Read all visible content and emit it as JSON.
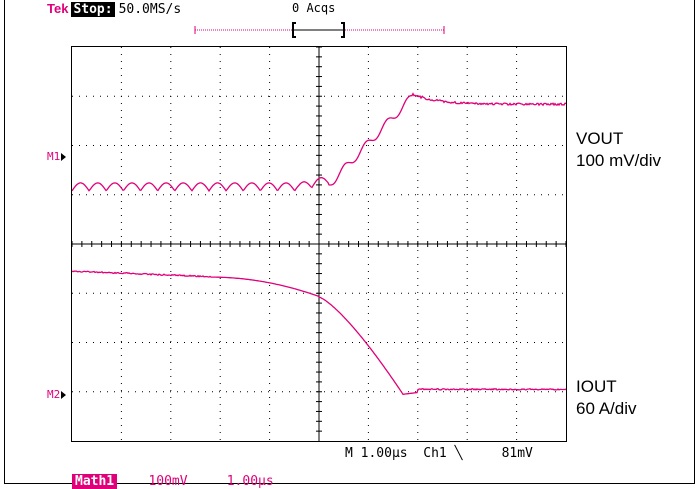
{
  "topbar": {
    "brand": "Tek",
    "state": "Stop:",
    "sample_rate": "50.0MS/s",
    "acquisitions": "0 Acqs"
  },
  "markers": {
    "m1": "M1",
    "m2": "M2"
  },
  "channels": [
    {
      "name": "VOUT",
      "scale": "100 mV/div"
    },
    {
      "name": "IOUT",
      "scale": "60 A/div"
    }
  ],
  "readout": {
    "timebase": "M 1.00µs",
    "trigger_source": "Ch1",
    "trigger_slope_icon": "falling-edge-icon",
    "trigger_level": "81mV"
  },
  "math_bar": {
    "label": "Math1",
    "volts": "100mV",
    "time": "1.00µs"
  },
  "colors": {
    "trace": "#e0007a",
    "grid": "#000000",
    "background": "#ffffff"
  },
  "waveforms": {
    "vout": {
      "baseline_div": 0.6,
      "ripple_count": 15,
      "step_div": 1.8,
      "step_time_div": 5.2,
      "overshoot_div": 0.2
    },
    "iout": {
      "start_div": -0.25,
      "end_div": -3.2,
      "transition_time_div": 5.0
    }
  }
}
